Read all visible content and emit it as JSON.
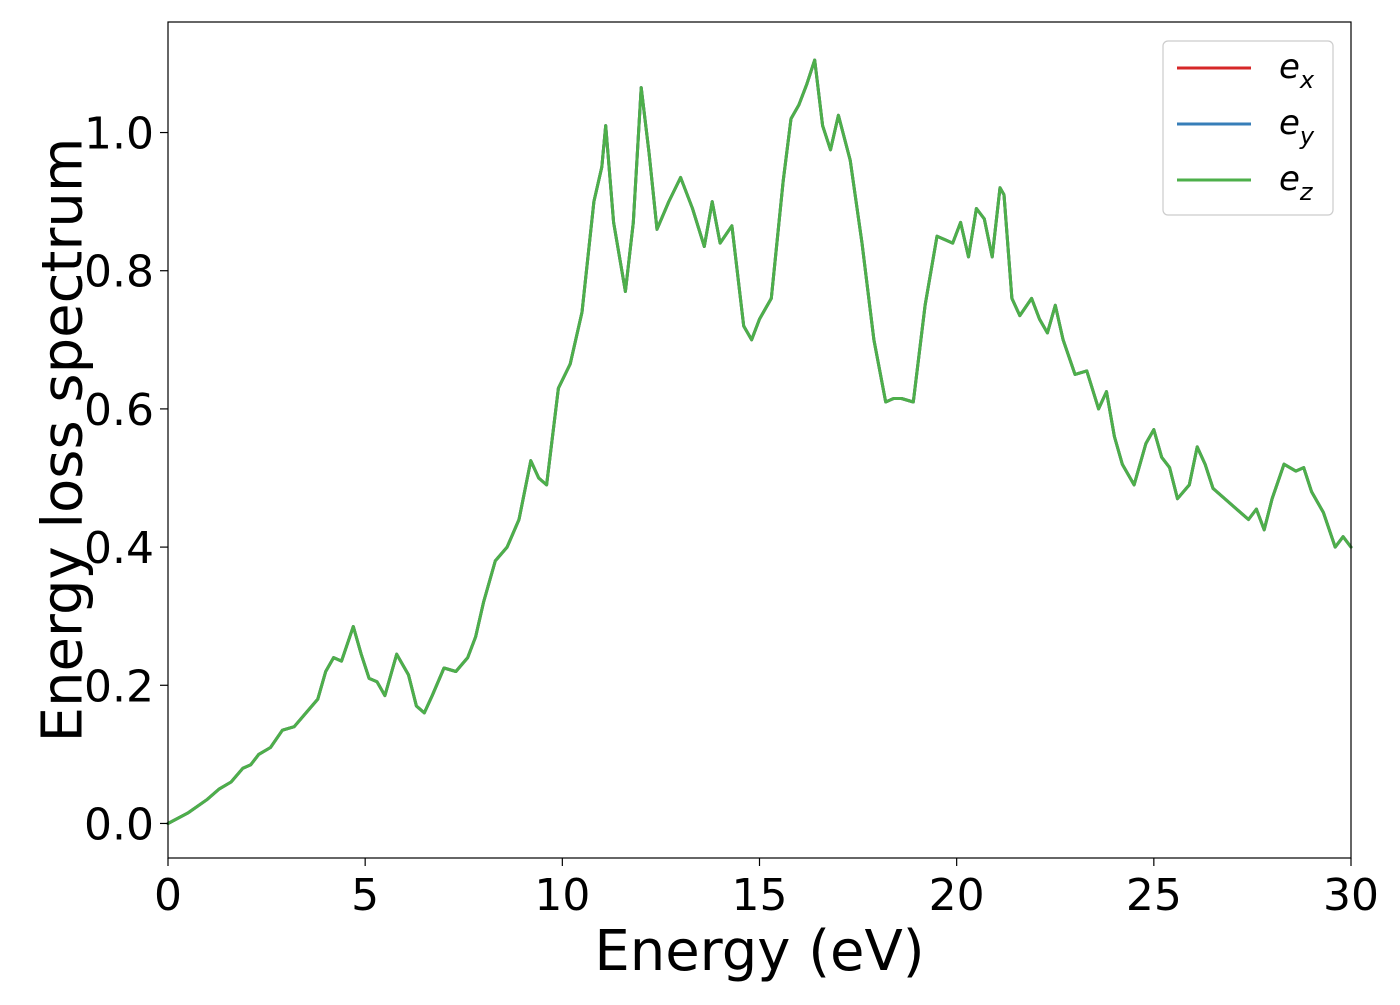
{
  "chart_data": {
    "type": "line",
    "title": "",
    "xlabel": "Energy (eV)",
    "ylabel": "Energy loss spectrum",
    "xlim": [
      0,
      30
    ],
    "ylim": [
      -0.05,
      1.16
    ],
    "xticks": [
      0,
      5,
      10,
      15,
      20,
      25,
      30
    ],
    "xtick_labels": [
      "0",
      "5",
      "10",
      "15",
      "20",
      "25",
      "30"
    ],
    "yticks": [
      0.0,
      0.2,
      0.4,
      0.6,
      0.8,
      1.0
    ],
    "ytick_labels": [
      "0.0",
      "0.2",
      "0.4",
      "0.6",
      "0.8",
      "1.0"
    ],
    "grid": false,
    "legend_position": "top-right",
    "series": [
      {
        "name": "e_x",
        "legend_base": "e",
        "legend_sub": "x",
        "color": "#d62728",
        "x": [
          0,
          0.5,
          1.0,
          1.3,
          1.6,
          1.9,
          2.1,
          2.3,
          2.6,
          2.9,
          3.2,
          3.5,
          3.8,
          4.0,
          4.2,
          4.4,
          4.7,
          4.9,
          5.1,
          5.3,
          5.5,
          5.8,
          6.1,
          6.3,
          6.5,
          6.7,
          7.0,
          7.3,
          7.6,
          7.8,
          8.0,
          8.3,
          8.6,
          8.9,
          9.2,
          9.4,
          9.6,
          9.9,
          10.2,
          10.5,
          10.8,
          11.0,
          11.1,
          11.3,
          11.6,
          11.8,
          12.0,
          12.2,
          12.4,
          12.7,
          13.0,
          13.3,
          13.6,
          13.8,
          14.0,
          14.3,
          14.6,
          14.8,
          15.0,
          15.3,
          15.6,
          15.8,
          16.0,
          16.2,
          16.4,
          16.6,
          16.8,
          17.0,
          17.3,
          17.6,
          17.9,
          18.2,
          18.4,
          18.6,
          18.9,
          19.2,
          19.5,
          19.7,
          19.9,
          20.1,
          20.3,
          20.5,
          20.7,
          20.9,
          21.1,
          21.2,
          21.4,
          21.6,
          21.9,
          22.1,
          22.3,
          22.5,
          22.7,
          23.0,
          23.3,
          23.6,
          23.8,
          24.0,
          24.2,
          24.5,
          24.8,
          25.0,
          25.2,
          25.4,
          25.6,
          25.9,
          26.1,
          26.3,
          26.5,
          26.8,
          27.1,
          27.4,
          27.6,
          27.8,
          28.0,
          28.3,
          28.6,
          28.8,
          29.0,
          29.3,
          29.6,
          29.8,
          30.0
        ],
        "y": [
          0.0,
          0.015,
          0.035,
          0.05,
          0.06,
          0.08,
          0.085,
          0.1,
          0.11,
          0.135,
          0.14,
          0.16,
          0.18,
          0.22,
          0.24,
          0.235,
          0.285,
          0.245,
          0.21,
          0.205,
          0.185,
          0.245,
          0.215,
          0.17,
          0.16,
          0.185,
          0.225,
          0.22,
          0.24,
          0.27,
          0.32,
          0.38,
          0.4,
          0.44,
          0.525,
          0.5,
          0.49,
          0.63,
          0.665,
          0.74,
          0.9,
          0.95,
          1.01,
          0.87,
          0.77,
          0.87,
          1.065,
          0.97,
          0.86,
          0.9,
          0.935,
          0.89,
          0.835,
          0.9,
          0.84,
          0.865,
          0.72,
          0.7,
          0.73,
          0.76,
          0.93,
          1.02,
          1.04,
          1.07,
          1.105,
          1.01,
          0.975,
          1.025,
          0.96,
          0.84,
          0.7,
          0.61,
          0.615,
          0.615,
          0.61,
          0.75,
          0.85,
          0.845,
          0.84,
          0.87,
          0.82,
          0.89,
          0.875,
          0.82,
          0.92,
          0.91,
          0.76,
          0.735,
          0.76,
          0.73,
          0.71,
          0.75,
          0.7,
          0.65,
          0.655,
          0.6,
          0.625,
          0.56,
          0.52,
          0.49,
          0.55,
          0.57,
          0.53,
          0.515,
          0.47,
          0.49,
          0.545,
          0.52,
          0.485,
          0.47,
          0.455,
          0.44,
          0.455,
          0.425,
          0.47,
          0.52,
          0.51,
          0.515,
          0.48,
          0.45,
          0.4,
          0.415,
          0.4
        ]
      },
      {
        "name": "e_y",
        "legend_base": "e",
        "legend_sub": "y",
        "color": "#377eb8",
        "x": [
          0,
          0.5,
          1.0,
          1.3,
          1.6,
          1.9,
          2.1,
          2.3,
          2.6,
          2.9,
          3.2,
          3.5,
          3.8,
          4.0,
          4.2,
          4.4,
          4.7,
          4.9,
          5.1,
          5.3,
          5.5,
          5.8,
          6.1,
          6.3,
          6.5,
          6.7,
          7.0,
          7.3,
          7.6,
          7.8,
          8.0,
          8.3,
          8.6,
          8.9,
          9.2,
          9.4,
          9.6,
          9.9,
          10.2,
          10.5,
          10.8,
          11.0,
          11.1,
          11.3,
          11.6,
          11.8,
          12.0,
          12.2,
          12.4,
          12.7,
          13.0,
          13.3,
          13.6,
          13.8,
          14.0,
          14.3,
          14.6,
          14.8,
          15.0,
          15.3,
          15.6,
          15.8,
          16.0,
          16.2,
          16.4,
          16.6,
          16.8,
          17.0,
          17.3,
          17.6,
          17.9,
          18.2,
          18.4,
          18.6,
          18.9,
          19.2,
          19.5,
          19.7,
          19.9,
          20.1,
          20.3,
          20.5,
          20.7,
          20.9,
          21.1,
          21.2,
          21.4,
          21.6,
          21.9,
          22.1,
          22.3,
          22.5,
          22.7,
          23.0,
          23.3,
          23.6,
          23.8,
          24.0,
          24.2,
          24.5,
          24.8,
          25.0,
          25.2,
          25.4,
          25.6,
          25.9,
          26.1,
          26.3,
          26.5,
          26.8,
          27.1,
          27.4,
          27.6,
          27.8,
          28.0,
          28.3,
          28.6,
          28.8,
          29.0,
          29.3,
          29.6,
          29.8,
          30.0
        ],
        "y": [
          0.0,
          0.015,
          0.035,
          0.05,
          0.06,
          0.08,
          0.085,
          0.1,
          0.11,
          0.135,
          0.14,
          0.16,
          0.18,
          0.22,
          0.24,
          0.235,
          0.285,
          0.245,
          0.21,
          0.205,
          0.185,
          0.245,
          0.215,
          0.17,
          0.16,
          0.185,
          0.225,
          0.22,
          0.24,
          0.27,
          0.32,
          0.38,
          0.4,
          0.44,
          0.525,
          0.5,
          0.49,
          0.63,
          0.665,
          0.74,
          0.9,
          0.95,
          1.01,
          0.87,
          0.77,
          0.87,
          1.065,
          0.97,
          0.86,
          0.9,
          0.935,
          0.89,
          0.835,
          0.9,
          0.84,
          0.865,
          0.72,
          0.7,
          0.73,
          0.76,
          0.93,
          1.02,
          1.04,
          1.07,
          1.105,
          1.01,
          0.975,
          1.025,
          0.96,
          0.84,
          0.7,
          0.61,
          0.615,
          0.615,
          0.61,
          0.75,
          0.85,
          0.845,
          0.84,
          0.87,
          0.82,
          0.89,
          0.875,
          0.82,
          0.92,
          0.91,
          0.76,
          0.735,
          0.76,
          0.73,
          0.71,
          0.75,
          0.7,
          0.65,
          0.655,
          0.6,
          0.625,
          0.56,
          0.52,
          0.49,
          0.55,
          0.57,
          0.53,
          0.515,
          0.47,
          0.49,
          0.545,
          0.52,
          0.485,
          0.47,
          0.455,
          0.44,
          0.455,
          0.425,
          0.47,
          0.52,
          0.51,
          0.515,
          0.48,
          0.45,
          0.4,
          0.415,
          0.4
        ]
      },
      {
        "name": "e_z",
        "legend_base": "e",
        "legend_sub": "z",
        "color": "#4daf4a",
        "x": [
          0,
          0.5,
          1.0,
          1.3,
          1.6,
          1.9,
          2.1,
          2.3,
          2.6,
          2.9,
          3.2,
          3.5,
          3.8,
          4.0,
          4.2,
          4.4,
          4.7,
          4.9,
          5.1,
          5.3,
          5.5,
          5.8,
          6.1,
          6.3,
          6.5,
          6.7,
          7.0,
          7.3,
          7.6,
          7.8,
          8.0,
          8.3,
          8.6,
          8.9,
          9.2,
          9.4,
          9.6,
          9.9,
          10.2,
          10.5,
          10.8,
          11.0,
          11.1,
          11.3,
          11.6,
          11.8,
          12.0,
          12.2,
          12.4,
          12.7,
          13.0,
          13.3,
          13.6,
          13.8,
          14.0,
          14.3,
          14.6,
          14.8,
          15.0,
          15.3,
          15.6,
          15.8,
          16.0,
          16.2,
          16.4,
          16.6,
          16.8,
          17.0,
          17.3,
          17.6,
          17.9,
          18.2,
          18.4,
          18.6,
          18.9,
          19.2,
          19.5,
          19.7,
          19.9,
          20.1,
          20.3,
          20.5,
          20.7,
          20.9,
          21.1,
          21.2,
          21.4,
          21.6,
          21.9,
          22.1,
          22.3,
          22.5,
          22.7,
          23.0,
          23.3,
          23.6,
          23.8,
          24.0,
          24.2,
          24.5,
          24.8,
          25.0,
          25.2,
          25.4,
          25.6,
          25.9,
          26.1,
          26.3,
          26.5,
          26.8,
          27.1,
          27.4,
          27.6,
          27.8,
          28.0,
          28.3,
          28.6,
          28.8,
          29.0,
          29.3,
          29.6,
          29.8,
          30.0
        ],
        "y": [
          0.0,
          0.015,
          0.035,
          0.05,
          0.06,
          0.08,
          0.085,
          0.1,
          0.11,
          0.135,
          0.14,
          0.16,
          0.18,
          0.22,
          0.24,
          0.235,
          0.285,
          0.245,
          0.21,
          0.205,
          0.185,
          0.245,
          0.215,
          0.17,
          0.16,
          0.185,
          0.225,
          0.22,
          0.24,
          0.27,
          0.32,
          0.38,
          0.4,
          0.44,
          0.525,
          0.5,
          0.49,
          0.63,
          0.665,
          0.74,
          0.9,
          0.95,
          1.01,
          0.87,
          0.77,
          0.87,
          1.065,
          0.97,
          0.86,
          0.9,
          0.935,
          0.89,
          0.835,
          0.9,
          0.84,
          0.865,
          0.72,
          0.7,
          0.73,
          0.76,
          0.93,
          1.02,
          1.04,
          1.07,
          1.105,
          1.01,
          0.975,
          1.025,
          0.96,
          0.84,
          0.7,
          0.61,
          0.615,
          0.615,
          0.61,
          0.75,
          0.85,
          0.845,
          0.84,
          0.87,
          0.82,
          0.89,
          0.875,
          0.82,
          0.92,
          0.91,
          0.76,
          0.735,
          0.76,
          0.73,
          0.71,
          0.75,
          0.7,
          0.65,
          0.655,
          0.6,
          0.625,
          0.56,
          0.52,
          0.49,
          0.55,
          0.57,
          0.53,
          0.515,
          0.47,
          0.49,
          0.545,
          0.52,
          0.485,
          0.47,
          0.455,
          0.44,
          0.455,
          0.425,
          0.47,
          0.52,
          0.51,
          0.515,
          0.48,
          0.45,
          0.4,
          0.415,
          0.4
        ]
      }
    ]
  }
}
